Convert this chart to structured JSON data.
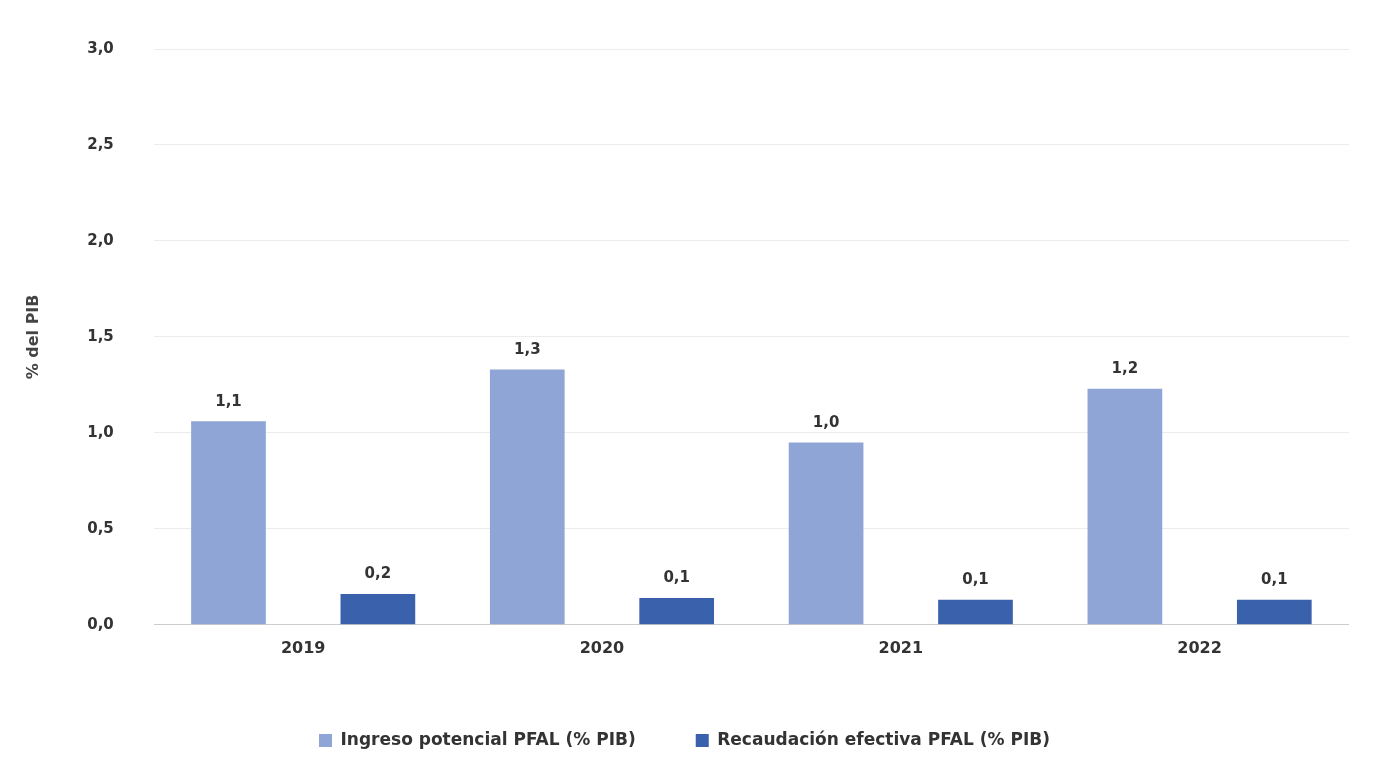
{
  "chart_data": {
    "type": "bar",
    "ylabel": "% del PIB",
    "categories": [
      "2019",
      "2020",
      "2021",
      "2022"
    ],
    "series": [
      {
        "name": "Ingreso potencial PFAL (% PIB)",
        "color": "#8fa5d5",
        "values": [
          1.06,
          1.33,
          0.95,
          1.23
        ],
        "value_labels": [
          "1,1",
          "1,3",
          "1,0",
          "1,2"
        ]
      },
      {
        "name": "Recaudación efectiva PFAL (% PIB)",
        "color": "#3a62ac",
        "values": [
          0.16,
          0.14,
          0.13,
          0.13
        ],
        "value_labels": [
          "0,2",
          "0,1",
          "0,1",
          "0,1"
        ]
      }
    ],
    "ylim": [
      0,
      3
    ],
    "yticks": [
      {
        "value": 0,
        "label": "0,0"
      },
      {
        "value": 0.5,
        "label": "0,5"
      },
      {
        "value": 1,
        "label": "1,0"
      },
      {
        "value": 1.5,
        "label": "1,5"
      },
      {
        "value": 2,
        "label": "2,0"
      },
      {
        "value": 2.5,
        "label": "2,5"
      },
      {
        "value": 3,
        "label": "3,0"
      }
    ],
    "grid": "y",
    "legend": "bottom"
  }
}
